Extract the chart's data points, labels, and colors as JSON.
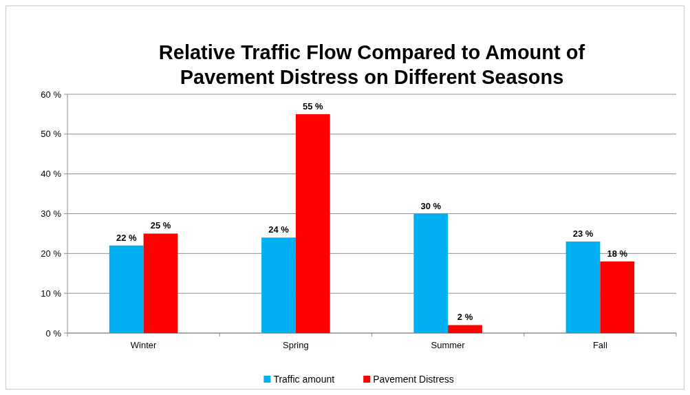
{
  "chart_data": {
    "type": "bar",
    "title": "Relative Traffic Flow Compared to Amount of Pavement Distress on Different Seasons",
    "categories": [
      "Winter",
      "Spring",
      "Summer",
      "Fall"
    ],
    "series": [
      {
        "name": "Traffic amount",
        "color": "#00b0f0",
        "values": [
          22,
          24,
          30,
          23
        ],
        "value_labels": [
          "22 %",
          "24 %",
          "30 %",
          "23 %"
        ]
      },
      {
        "name": "Pavement Distress",
        "color": "#ff0000",
        "values": [
          25,
          55,
          2,
          18
        ],
        "value_labels": [
          "25 %",
          "55 %",
          "2 %",
          "18 %"
        ]
      }
    ],
    "ylim": [
      0,
      60
    ],
    "yticks": [
      {
        "value": 0,
        "label": "0 %"
      },
      {
        "value": 10,
        "label": "10 %"
      },
      {
        "value": 20,
        "label": "20 %"
      },
      {
        "value": 30,
        "label": "30 %"
      },
      {
        "value": 40,
        "label": "40 %"
      },
      {
        "value": 50,
        "label": "50 %"
      },
      {
        "value": 60,
        "label": "60 %"
      }
    ],
    "grid": "y",
    "legend": "bottom"
  }
}
